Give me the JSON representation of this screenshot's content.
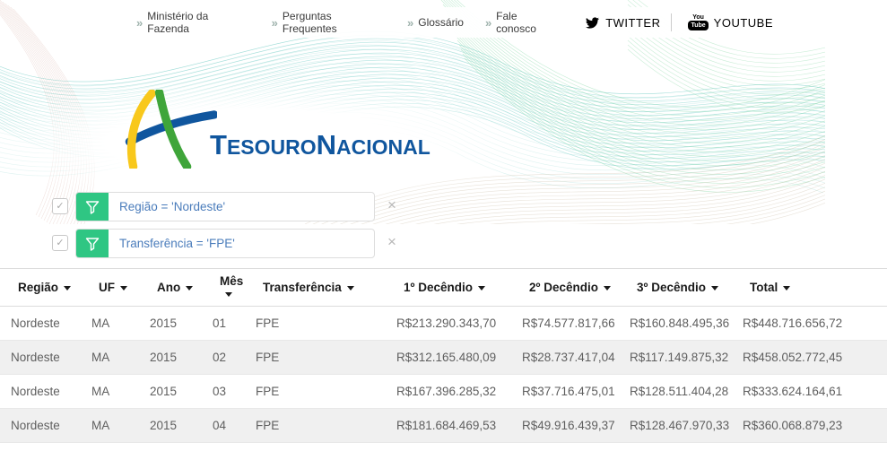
{
  "icons": {
    "chevron": "»",
    "close": "×",
    "check": "✓"
  },
  "topnav": {
    "links": [
      {
        "label": "Ministério da Fazenda"
      },
      {
        "label": "Perguntas Frequentes"
      },
      {
        "label": "Glossário"
      },
      {
        "label": "Fale conosco"
      }
    ],
    "twitter_label": "TWITTER",
    "youtube_label": "YOUTUBE",
    "youtube_icon_top": "You",
    "youtube_icon_bottom": "Tube"
  },
  "logo": {
    "word1_initial": "T",
    "word1_rest": "ESOURO",
    "word2_initial": "N",
    "word2_rest": "ACIONAL"
  },
  "filters": [
    {
      "expression": "Região = 'Nordeste'",
      "checked": true
    },
    {
      "expression": "Transferência = 'FPE'",
      "checked": true
    }
  ],
  "table": {
    "columns": [
      "Região",
      "UF",
      "Ano",
      "Mês",
      "Transferência",
      "1º Decêndio",
      "2º Decêndio",
      "3º Decêndio",
      "Total"
    ],
    "rows": [
      [
        "Nordeste",
        "MA",
        "2015",
        "01",
        "FPE",
        "R$213.290.343,70",
        "R$74.577.817,66",
        "R$160.848.495,36",
        "R$448.716.656,72"
      ],
      [
        "Nordeste",
        "MA",
        "2015",
        "02",
        "FPE",
        "R$312.165.480,09",
        "R$28.737.417,04",
        "R$117.149.875,32",
        "R$458.052.772,45"
      ],
      [
        "Nordeste",
        "MA",
        "2015",
        "03",
        "FPE",
        "R$167.396.285,32",
        "R$37.716.475,01",
        "R$128.511.404,28",
        "R$333.624.164,61"
      ],
      [
        "Nordeste",
        "MA",
        "2015",
        "04",
        "FPE",
        "R$181.684.469,53",
        "R$49.916.439,37",
        "R$128.467.970,33",
        "R$360.068.879,23"
      ]
    ]
  },
  "colors": {
    "filter_green": "#2fc683",
    "filter_text_blue": "#4a7cbb",
    "logo_blue": "#10569e",
    "logo_yellow": "#f8c81c",
    "logo_green": "#3fa53a",
    "stripe_gray": "#f0f0f0"
  }
}
